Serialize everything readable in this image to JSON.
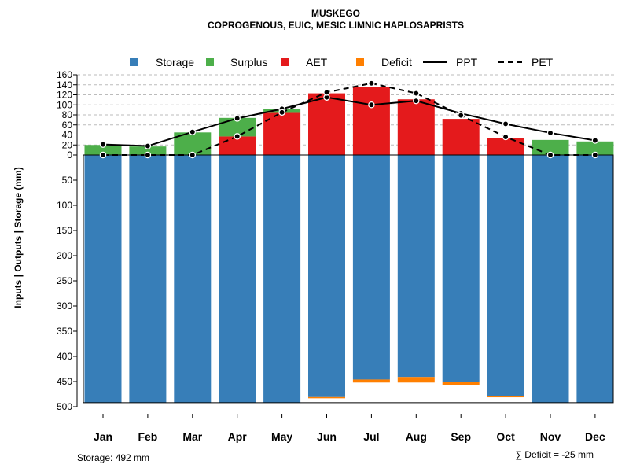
{
  "colors": {
    "storage": "#377EB8",
    "surplus": "#4DAF4A",
    "aet": "#E41A1C",
    "deficit": "#FF7F00",
    "line": "#000000",
    "grid": "#bbbbbb"
  },
  "chart_data": {
    "type": "bar",
    "title": "MUSKEGO",
    "subtitle": "COPROGENOUS, EUIC, MESIC LIMNIC HAPLOSAPRISTS",
    "ylabel": "Inputs | Outputs | Storage     (mm)",
    "upper_ylim": [
      0,
      160
    ],
    "lower_ylim": [
      0,
      500
    ],
    "upper_ticks": [
      "0",
      "20",
      "40",
      "60",
      "80",
      "100",
      "120",
      "140",
      "160"
    ],
    "lower_ticks": [
      "0",
      "50",
      "100",
      "150",
      "200",
      "250",
      "300",
      "350",
      "400",
      "450",
      "500"
    ],
    "categories": [
      "Jan",
      "Feb",
      "Mar",
      "Apr",
      "May",
      "Jun",
      "Jul",
      "Aug",
      "Sep",
      "Oct",
      "Nov",
      "Dec"
    ],
    "legend": [
      "Storage",
      "Surplus",
      "AET",
      "Deficit",
      "PPT",
      "PET"
    ],
    "series": [
      {
        "name": "Storage",
        "values": [
          492,
          492,
          492,
          492,
          492,
          481,
          446,
          441,
          451,
          479,
          492,
          492
        ]
      },
      {
        "name": "Surplus",
        "values": [
          20,
          17,
          45,
          37,
          8,
          0,
          0,
          0,
          0,
          0,
          30,
          27
        ]
      },
      {
        "name": "AET",
        "values": [
          0,
          0,
          0,
          37,
          84,
          123,
          135,
          111,
          72,
          34,
          0,
          0
        ]
      },
      {
        "name": "Deficit",
        "values": [
          0,
          0,
          0,
          0,
          0,
          1,
          6,
          11,
          6,
          2,
          0,
          0
        ]
      },
      {
        "name": "PPT",
        "values": [
          21,
          18,
          46,
          73,
          92,
          115,
          100,
          108,
          83,
          62,
          44,
          29
        ]
      },
      {
        "name": "PET",
        "values": [
          0,
          0,
          0,
          37,
          85,
          125,
          143,
          123,
          79,
          36,
          0,
          0
        ]
      }
    ]
  },
  "footer": {
    "storage_note": "Storage: 492 mm",
    "deficit_note": "∑ Deficit = -25 mm"
  }
}
